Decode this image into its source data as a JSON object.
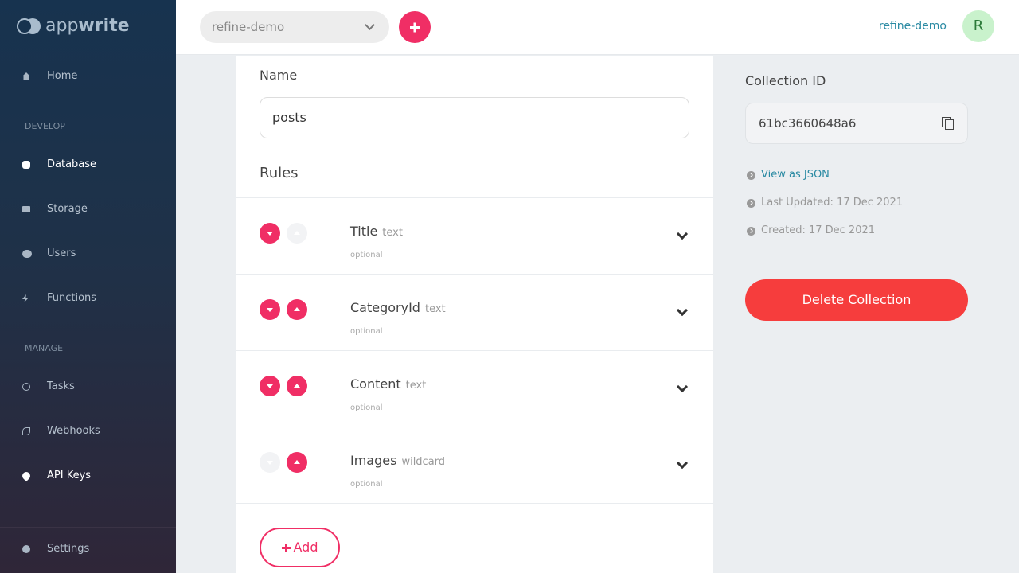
{
  "brand": {
    "logo_text_light": "app",
    "logo_text_bold": "write"
  },
  "sidebar": {
    "home": "Home",
    "develop": "DEVELOP",
    "manage": "MANAGE",
    "items": [
      {
        "label": "Database",
        "icon": "database-icon"
      },
      {
        "label": "Storage",
        "icon": "folder-icon"
      },
      {
        "label": "Users",
        "icon": "users-icon"
      },
      {
        "label": "Functions",
        "icon": "bolt-icon"
      }
    ],
    "manage_items": [
      {
        "label": "Tasks",
        "icon": "clock-icon"
      },
      {
        "label": "Webhooks",
        "icon": "link-icon"
      },
      {
        "label": "API Keys",
        "icon": "key-icon"
      }
    ],
    "settings": "Settings"
  },
  "topbar": {
    "project": "refine-demo",
    "user_name": "refine-demo",
    "avatar_initial": "R"
  },
  "form": {
    "name_label": "Name",
    "name_value": "posts",
    "rules_label": "Rules",
    "rules": [
      {
        "name": "Title",
        "type": "text",
        "note": "optional",
        "down": true,
        "up": false
      },
      {
        "name": "CategoryId",
        "type": "text",
        "note": "optional",
        "down": true,
        "up": true
      },
      {
        "name": "Content",
        "type": "text",
        "note": "optional",
        "down": true,
        "up": true
      },
      {
        "name": "Images",
        "type": "wildcard",
        "note": "optional",
        "down": false,
        "up": true
      }
    ],
    "add_label": "Add"
  },
  "details": {
    "id_label": "Collection ID",
    "id_value": "61bc3660648a6",
    "view_json": "View as JSON",
    "last_updated": "Last Updated: 17 Dec 2021",
    "created": "Created: 17 Dec 2021",
    "delete_label": "Delete Collection"
  },
  "colors": {
    "accent": "#f02e65",
    "danger": "#f63d3d",
    "link": "#2a8aa3"
  }
}
